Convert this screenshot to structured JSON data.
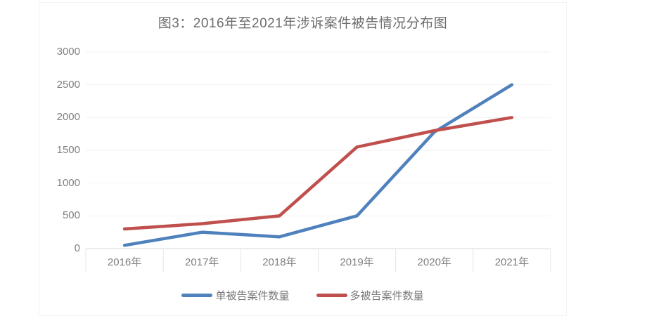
{
  "figure": {
    "title": "图3：2016年至2021年涉诉案件被告情况分布图"
  },
  "chart_data": {
    "type": "line",
    "title": "图3：2016年至2021年涉诉案件被告情况分布图",
    "categories": [
      "2016年",
      "2017年",
      "2018年",
      "2019年",
      "2020年",
      "2021年"
    ],
    "series": [
      {
        "name": "单被告案件数量",
        "color": "#4f81bd",
        "values": [
          50,
          250,
          180,
          500,
          1780,
          2500
        ]
      },
      {
        "name": "多被告案件数量",
        "color": "#c0504d",
        "values": [
          300,
          380,
          500,
          1550,
          1800,
          2000
        ]
      }
    ],
    "xlabel": "",
    "ylabel": "",
    "ylim": [
      0,
      3000
    ],
    "ytick_step": 500,
    "yticks": [
      0,
      500,
      1000,
      1500,
      2000,
      2500,
      3000
    ],
    "grid": "horizontal",
    "legend_position": "bottom"
  },
  "colors": {
    "grid_line": "#f2f2f2",
    "axis_line": "#d9d9d9",
    "category_tick": "#e6e6e6",
    "label_text": "#7f7f7f",
    "title_text": "#6d6d6d",
    "frame_border": "#f2f2f2",
    "background": "#ffffff"
  }
}
